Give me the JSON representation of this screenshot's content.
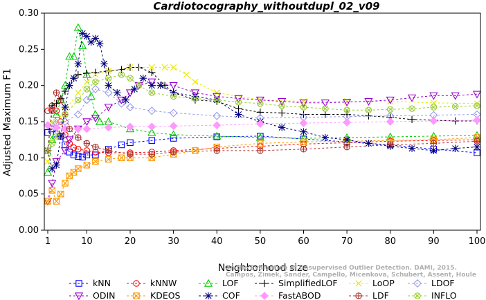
{
  "chart_data": {
    "type": "line",
    "title": "Cardiotocography_withoutdupl_02_v09",
    "xlabel": "Neighborhood size",
    "ylabel": "Adjusted Maximum F1",
    "xlim": [
      1,
      100
    ],
    "ylim": [
      0,
      0.3
    ],
    "xticks": [
      "1",
      "10",
      "20",
      "30",
      "40",
      "50",
      "60",
      "70",
      "80",
      "90",
      "100"
    ],
    "yticks": [
      "0.00",
      "0.05",
      "0.10",
      "0.15",
      "0.20",
      "0.25",
      "0.30"
    ],
    "credit_lines": [
      "Campos, Zimek, Sander, Campello, Micenkova, Schubert, Assent, Houle",
      "On the Evaluation of Unsupervised Outlier Detection. DAMI, 2015."
    ],
    "legend_position": "bottom",
    "series": [
      {
        "name": "kNN",
        "color": "#0000ff",
        "marker": "square",
        "points": [
          [
            1,
            0.135
          ],
          [
            2,
            0.14
          ],
          [
            3,
            0.133
          ],
          [
            4,
            0.13
          ],
          [
            5,
            0.118
          ],
          [
            6,
            0.108
          ],
          [
            7,
            0.104
          ],
          [
            8,
            0.102
          ],
          [
            9,
            0.101
          ],
          [
            10,
            0.104
          ],
          [
            12,
            0.104
          ],
          [
            15,
            0.112
          ],
          [
            18,
            0.118
          ],
          [
            20,
            0.121
          ],
          [
            25,
            0.124
          ],
          [
            30,
            0.127
          ],
          [
            40,
            0.129
          ],
          [
            50,
            0.13
          ],
          [
            60,
            0.126
          ],
          [
            70,
            0.122
          ],
          [
            80,
            0.118
          ],
          [
            90,
            0.112
          ],
          [
            100,
            0.107
          ]
        ]
      },
      {
        "name": "kNNW",
        "color": "#ff0000",
        "marker": "circle",
        "points": [
          [
            1,
            0.165
          ],
          [
            2,
            0.172
          ],
          [
            3,
            0.165
          ],
          [
            4,
            0.15
          ],
          [
            5,
            0.132
          ],
          [
            6,
            0.12
          ],
          [
            7,
            0.114
          ],
          [
            8,
            0.112
          ],
          [
            10,
            0.11
          ],
          [
            12,
            0.108
          ],
          [
            15,
            0.107
          ],
          [
            20,
            0.107
          ],
          [
            25,
            0.108
          ],
          [
            30,
            0.11
          ],
          [
            40,
            0.113
          ],
          [
            50,
            0.116
          ],
          [
            60,
            0.119
          ],
          [
            70,
            0.121
          ],
          [
            80,
            0.123
          ],
          [
            90,
            0.124
          ],
          [
            100,
            0.125
          ]
        ]
      },
      {
        "name": "LOF",
        "color": "#00cc00",
        "marker": "triangle-up",
        "points": [
          [
            1,
            0.08
          ],
          [
            2,
            0.125
          ],
          [
            3,
            0.16
          ],
          [
            4,
            0.18
          ],
          [
            5,
            0.2
          ],
          [
            6,
            0.24
          ],
          [
            7,
            0.24
          ],
          [
            8,
            0.28
          ],
          [
            9,
            0.255
          ],
          [
            10,
            0.215
          ],
          [
            11,
            0.185
          ],
          [
            12,
            0.16
          ],
          [
            13,
            0.15
          ],
          [
            15,
            0.15
          ],
          [
            20,
            0.14
          ],
          [
            25,
            0.135
          ],
          [
            30,
            0.132
          ],
          [
            40,
            0.13
          ],
          [
            50,
            0.128
          ],
          [
            60,
            0.127
          ],
          [
            70,
            0.128
          ],
          [
            80,
            0.129
          ],
          [
            90,
            0.13
          ],
          [
            100,
            0.131
          ]
        ]
      },
      {
        "name": "SimplifiedLOF",
        "color": "#000000",
        "marker": "plus",
        "points": [
          [
            1,
            0.11
          ],
          [
            2,
            0.172
          ],
          [
            3,
            0.175
          ],
          [
            4,
            0.182
          ],
          [
            5,
            0.192
          ],
          [
            6,
            0.2
          ],
          [
            7,
            0.21
          ],
          [
            8,
            0.215
          ],
          [
            10,
            0.217
          ],
          [
            12,
            0.218
          ],
          [
            15,
            0.22
          ],
          [
            18,
            0.222
          ],
          [
            20,
            0.225
          ],
          [
            22,
            0.225
          ],
          [
            25,
            0.218
          ],
          [
            28,
            0.2
          ],
          [
            30,
            0.19
          ],
          [
            35,
            0.18
          ],
          [
            40,
            0.178
          ],
          [
            45,
            0.168
          ],
          [
            50,
            0.163
          ],
          [
            55,
            0.162
          ],
          [
            60,
            0.16
          ],
          [
            65,
            0.16
          ],
          [
            70,
            0.16
          ],
          [
            75,
            0.158
          ],
          [
            80,
            0.156
          ],
          [
            85,
            0.153
          ],
          [
            90,
            0.152
          ],
          [
            95,
            0.151
          ],
          [
            100,
            0.151
          ]
        ]
      },
      {
        "name": "LoOP",
        "color": "#e8e800",
        "marker": "x",
        "points": [
          [
            1,
            0.095
          ],
          [
            2,
            0.15
          ],
          [
            3,
            0.15
          ],
          [
            5,
            0.165
          ],
          [
            8,
            0.19
          ],
          [
            10,
            0.205
          ],
          [
            12,
            0.215
          ],
          [
            15,
            0.22
          ],
          [
            20,
            0.225
          ],
          [
            25,
            0.225
          ],
          [
            28,
            0.225
          ],
          [
            30,
            0.225
          ],
          [
            33,
            0.215
          ],
          [
            35,
            0.205
          ],
          [
            40,
            0.19
          ],
          [
            50,
            0.18
          ],
          [
            60,
            0.178
          ],
          [
            70,
            0.178
          ],
          [
            80,
            0.178
          ],
          [
            90,
            0.176
          ],
          [
            100,
            0.175
          ]
        ]
      },
      {
        "name": "LDOF",
        "color": "#9999ee",
        "marker": "diamond",
        "points": [
          [
            1,
            0.145
          ],
          [
            3,
            0.148
          ],
          [
            5,
            0.15
          ],
          [
            8,
            0.16
          ],
          [
            10,
            0.18
          ],
          [
            12,
            0.195
          ],
          [
            15,
            0.19
          ],
          [
            18,
            0.175
          ],
          [
            20,
            0.17
          ],
          [
            25,
            0.165
          ],
          [
            30,
            0.162
          ],
          [
            40,
            0.158
          ],
          [
            50,
            0.155
          ],
          [
            60,
            0.156
          ],
          [
            70,
            0.157
          ],
          [
            80,
            0.158
          ],
          [
            90,
            0.159
          ],
          [
            100,
            0.16
          ]
        ]
      },
      {
        "name": "ODIN",
        "color": "#9900cc",
        "marker": "triangle-down",
        "points": [
          [
            1,
            0.04
          ],
          [
            2,
            0.065
          ],
          [
            3,
            0.095
          ],
          [
            5,
            0.11
          ],
          [
            6,
            0.125
          ],
          [
            8,
            0.14
          ],
          [
            10,
            0.15
          ],
          [
            12,
            0.155
          ],
          [
            15,
            0.17
          ],
          [
            18,
            0.18
          ],
          [
            20,
            0.19
          ],
          [
            22,
            0.2
          ],
          [
            25,
            0.205
          ],
          [
            30,
            0.2
          ],
          [
            35,
            0.19
          ],
          [
            40,
            0.185
          ],
          [
            45,
            0.182
          ],
          [
            50,
            0.18
          ],
          [
            55,
            0.178
          ],
          [
            60,
            0.176
          ],
          [
            65,
            0.176
          ],
          [
            70,
            0.177
          ],
          [
            75,
            0.178
          ],
          [
            80,
            0.18
          ],
          [
            85,
            0.183
          ],
          [
            90,
            0.186
          ],
          [
            95,
            0.186
          ],
          [
            100,
            0.188
          ]
        ]
      },
      {
        "name": "KDEOS",
        "color": "#ff9900",
        "marker": "square-x",
        "points": [
          [
            1,
            0.04
          ],
          [
            2,
            0.055
          ],
          [
            3,
            0.04
          ],
          [
            4,
            0.05
          ],
          [
            5,
            0.065
          ],
          [
            6,
            0.075
          ],
          [
            7,
            0.08
          ],
          [
            8,
            0.085
          ],
          [
            10,
            0.09
          ],
          [
            12,
            0.095
          ],
          [
            15,
            0.098
          ],
          [
            18,
            0.1
          ],
          [
            20,
            0.1
          ],
          [
            25,
            0.1
          ],
          [
            30,
            0.105
          ],
          [
            35,
            0.11
          ],
          [
            40,
            0.115
          ],
          [
            50,
            0.12
          ],
          [
            60,
            0.122
          ],
          [
            70,
            0.123
          ],
          [
            80,
            0.124
          ],
          [
            90,
            0.125
          ],
          [
            100,
            0.128
          ]
        ]
      },
      {
        "name": "COF",
        "color": "#000080",
        "marker": "asterisk",
        "points": [
          [
            1,
            0.11
          ],
          [
            2,
            0.085
          ],
          [
            3,
            0.09
          ],
          [
            4,
            0.13
          ],
          [
            5,
            0.17
          ],
          [
            6,
            0.2
          ],
          [
            7,
            0.21
          ],
          [
            8,
            0.23
          ],
          [
            9,
            0.272
          ],
          [
            10,
            0.268
          ],
          [
            11,
            0.26
          ],
          [
            12,
            0.265
          ],
          [
            13,
            0.258
          ],
          [
            14,
            0.23
          ],
          [
            15,
            0.2
          ],
          [
            17,
            0.19
          ],
          [
            19,
            0.18
          ],
          [
            21,
            0.195
          ],
          [
            23,
            0.21
          ],
          [
            25,
            0.2
          ],
          [
            27,
            0.2
          ],
          [
            30,
            0.19
          ],
          [
            35,
            0.185
          ],
          [
            40,
            0.18
          ],
          [
            45,
            0.16
          ],
          [
            50,
            0.15
          ],
          [
            55,
            0.142
          ],
          [
            60,
            0.136
          ],
          [
            65,
            0.128
          ],
          [
            70,
            0.125
          ],
          [
            75,
            0.12
          ],
          [
            80,
            0.116
          ],
          [
            85,
            0.113
          ],
          [
            90,
            0.11
          ],
          [
            95,
            0.113
          ],
          [
            100,
            0.115
          ]
        ]
      },
      {
        "name": "FastABOD",
        "color": "#ff99ff",
        "marker": "diamond-filled",
        "points": [
          [
            1,
            0.145
          ],
          [
            3,
            0.142
          ],
          [
            5,
            0.14
          ],
          [
            8,
            0.14
          ],
          [
            10,
            0.14
          ],
          [
            15,
            0.142
          ],
          [
            20,
            0.143
          ],
          [
            25,
            0.143
          ],
          [
            30,
            0.144
          ],
          [
            40,
            0.145
          ],
          [
            50,
            0.147
          ],
          [
            60,
            0.148
          ],
          [
            70,
            0.149
          ],
          [
            80,
            0.15
          ],
          [
            90,
            0.151
          ],
          [
            100,
            0.152
          ]
        ]
      },
      {
        "name": "LDF",
        "color": "#aa3333",
        "marker": "circle-plus",
        "points": [
          [
            1,
            0.11
          ],
          [
            2,
            0.165
          ],
          [
            3,
            0.19
          ],
          [
            4,
            0.18
          ],
          [
            5,
            0.16
          ],
          [
            6,
            0.14
          ],
          [
            8,
            0.128
          ],
          [
            10,
            0.12
          ],
          [
            12,
            0.115
          ],
          [
            15,
            0.11
          ],
          [
            20,
            0.105
          ],
          [
            25,
            0.105
          ],
          [
            30,
            0.108
          ],
          [
            40,
            0.11
          ],
          [
            50,
            0.11
          ],
          [
            60,
            0.112
          ],
          [
            70,
            0.115
          ],
          [
            80,
            0.118
          ],
          [
            90,
            0.12
          ],
          [
            100,
            0.123
          ]
        ]
      },
      {
        "name": "INFLO",
        "color": "#99cc33",
        "marker": "circle-x",
        "points": [
          [
            1,
            0.11
          ],
          [
            2,
            0.12
          ],
          [
            3,
            0.13
          ],
          [
            5,
            0.16
          ],
          [
            8,
            0.18
          ],
          [
            10,
            0.195
          ],
          [
            12,
            0.205
          ],
          [
            15,
            0.21
          ],
          [
            18,
            0.215
          ],
          [
            20,
            0.21
          ],
          [
            22,
            0.2
          ],
          [
            25,
            0.19
          ],
          [
            30,
            0.185
          ],
          [
            35,
            0.182
          ],
          [
            40,
            0.18
          ],
          [
            45,
            0.177
          ],
          [
            50,
            0.175
          ],
          [
            55,
            0.172
          ],
          [
            60,
            0.17
          ],
          [
            65,
            0.168
          ],
          [
            70,
            0.166
          ],
          [
            75,
            0.166
          ],
          [
            80,
            0.167
          ],
          [
            85,
            0.168
          ],
          [
            90,
            0.17
          ],
          [
            95,
            0.171
          ],
          [
            100,
            0.172
          ]
        ]
      }
    ]
  }
}
